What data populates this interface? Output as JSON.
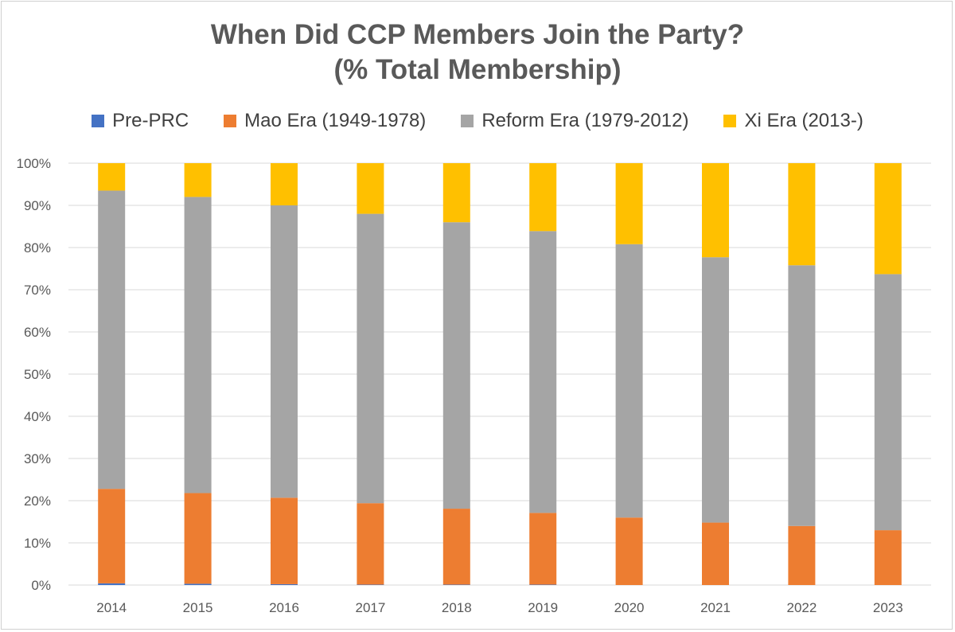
{
  "chart_data": {
    "type": "bar",
    "stacked": true,
    "title": "When Did CCP Members Join the Party?",
    "subtitle": "(% Total Membership)",
    "categories": [
      "2014",
      "2015",
      "2016",
      "2017",
      "2018",
      "2019",
      "2020",
      "2021",
      "2022",
      "2023"
    ],
    "series": [
      {
        "name": "Pre-PRC",
        "color": "#4472C4",
        "values": [
          0.4,
          0.3,
          0.2,
          0.1,
          0.1,
          0.1,
          0.0,
          0.0,
          0.0,
          0.0
        ]
      },
      {
        "name": "Mao Era (1949-1978)",
        "color": "#ED7D31",
        "values": [
          22.4,
          21.5,
          20.5,
          19.3,
          18.0,
          17.0,
          16.0,
          14.8,
          14.0,
          13.0
        ]
      },
      {
        "name": "Reform Era (1979-2012)",
        "color": "#A5A5A5",
        "values": [
          70.7,
          70.2,
          69.3,
          68.6,
          67.9,
          66.8,
          64.8,
          62.9,
          61.8,
          60.7
        ]
      },
      {
        "name": "Xi Era (2013-)",
        "color": "#FFC000",
        "values": [
          6.5,
          8.0,
          10.0,
          12.0,
          14.0,
          16.1,
          19.2,
          22.3,
          24.2,
          26.3
        ]
      }
    ],
    "ylim": [
      0,
      100
    ],
    "yticks": [
      "0%",
      "10%",
      "20%",
      "30%",
      "40%",
      "50%",
      "60%",
      "70%",
      "80%",
      "90%",
      "100%"
    ],
    "grid": true,
    "legend_position": "top"
  }
}
